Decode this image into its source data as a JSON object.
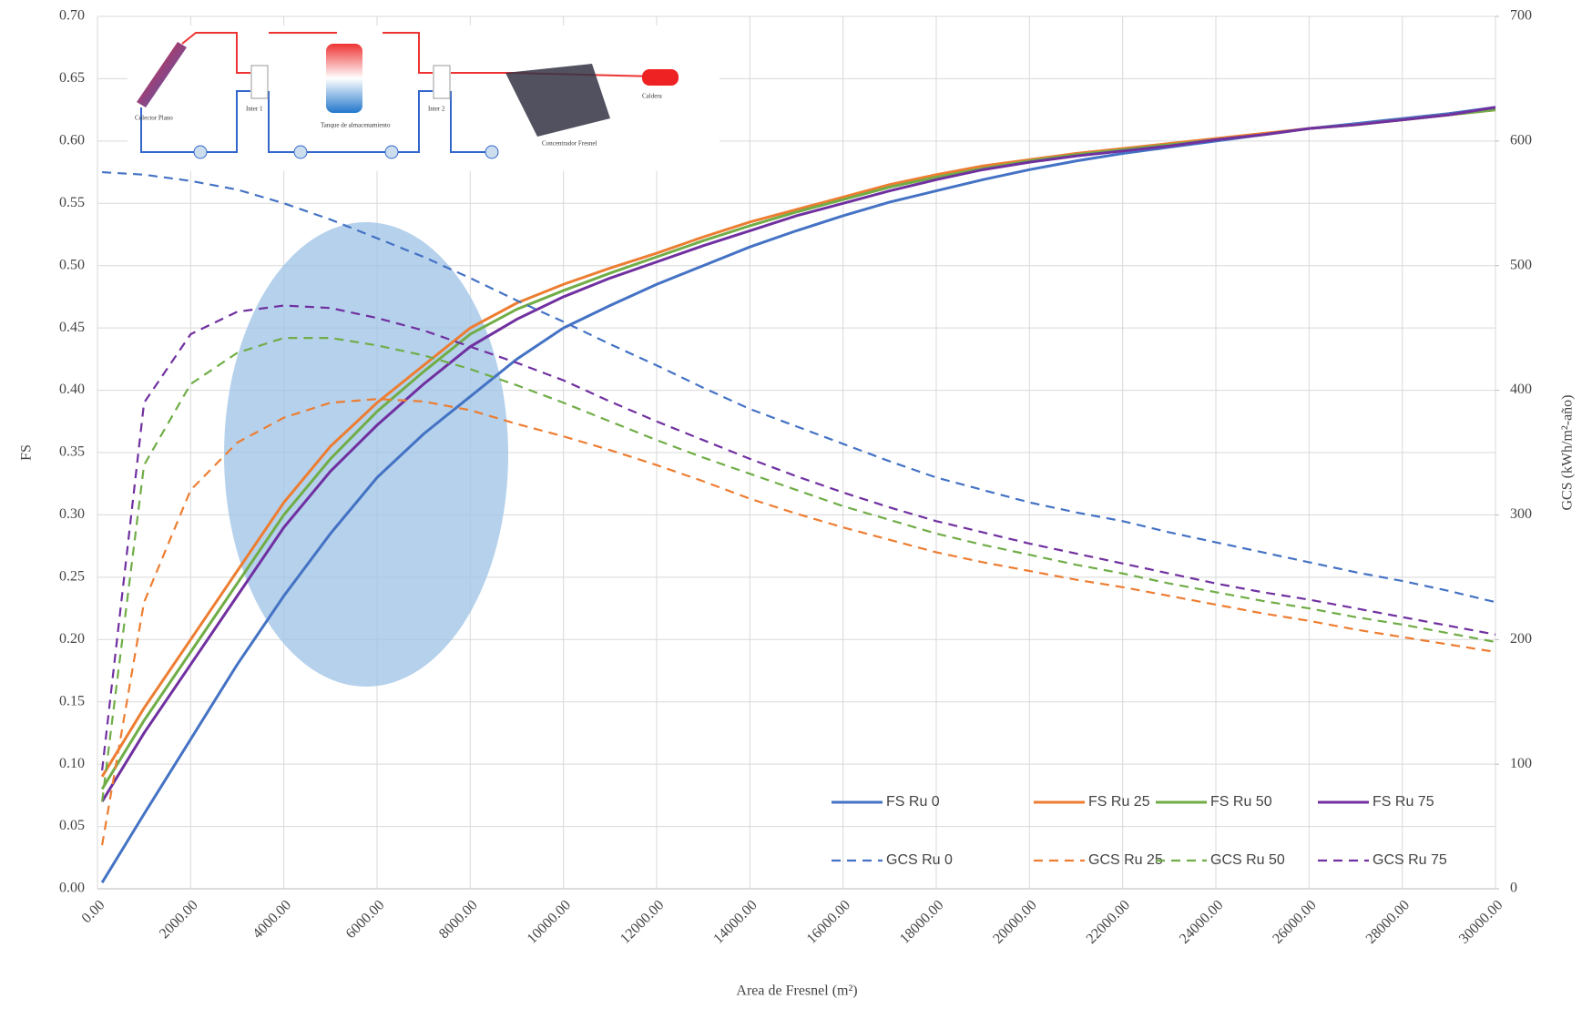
{
  "chart_data": {
    "type": "line",
    "x_label": "Area de Fresnel (m²)",
    "y_label": "FS",
    "y2_label": "GCS (kWh/m²-año)",
    "x": [
      100,
      1000,
      2000,
      3000,
      4000,
      5000,
      6000,
      7000,
      8000,
      9000,
      10000,
      11000,
      12000,
      13000,
      14000,
      15000,
      16000,
      17000,
      18000,
      19000,
      20000,
      21000,
      22000,
      23000,
      24000,
      25000,
      26000,
      27000,
      28000,
      29000,
      30000
    ],
    "series": [
      {
        "name": "FS Ru 0",
        "color": "#4472c4",
        "dashed": false,
        "values": [
          0.005,
          0.06,
          0.12,
          0.18,
          0.235,
          0.285,
          0.33,
          0.365,
          0.395,
          0.425,
          0.45,
          0.468,
          0.485,
          0.5,
          0.515,
          0.528,
          0.54,
          0.551,
          0.56,
          0.569,
          0.577,
          0.584,
          0.59,
          0.595,
          0.6,
          0.605,
          0.61,
          0.614,
          0.618,
          0.622,
          0.627
        ]
      },
      {
        "name": "FS Ru 25",
        "color": "#ed7d31",
        "dashed": false,
        "values": [
          0.09,
          0.145,
          0.2,
          0.255,
          0.31,
          0.355,
          0.39,
          0.42,
          0.45,
          0.47,
          0.485,
          0.498,
          0.51,
          0.523,
          0.535,
          0.545,
          0.555,
          0.565,
          0.573,
          0.58,
          0.585,
          0.59,
          0.594,
          0.598,
          0.602,
          0.606,
          0.61,
          0.613,
          0.617,
          0.621,
          0.625
        ]
      },
      {
        "name": "FS Ru 50",
        "color": "#70ad47",
        "dashed": false,
        "values": [
          0.08,
          0.135,
          0.19,
          0.245,
          0.3,
          0.345,
          0.383,
          0.415,
          0.445,
          0.465,
          0.48,
          0.494,
          0.507,
          0.52,
          0.532,
          0.543,
          0.553,
          0.563,
          0.571,
          0.578,
          0.584,
          0.589,
          0.593,
          0.597,
          0.601,
          0.605,
          0.61,
          0.613,
          0.617,
          0.621,
          0.625
        ]
      },
      {
        "name": "FS Ru 75",
        "color": "#7030a0",
        "dashed": false,
        "values": [
          0.07,
          0.125,
          0.18,
          0.235,
          0.29,
          0.335,
          0.372,
          0.405,
          0.435,
          0.457,
          0.475,
          0.49,
          0.503,
          0.516,
          0.528,
          0.54,
          0.55,
          0.56,
          0.569,
          0.577,
          0.583,
          0.588,
          0.592,
          0.596,
          0.601,
          0.605,
          0.61,
          0.613,
          0.617,
          0.621,
          0.627
        ]
      },
      {
        "name": "GCS Ru 0",
        "color": "#4472c4",
        "dashed": true,
        "axis": "y2",
        "values": [
          575,
          573,
          568,
          561,
          550,
          537,
          522,
          507,
          490,
          472,
          455,
          437,
          420,
          402,
          385,
          371,
          357,
          343,
          330,
          320,
          310,
          302,
          295,
          286,
          278,
          270,
          262,
          254,
          247,
          239,
          230
        ]
      },
      {
        "name": "GCS Ru 25",
        "color": "#ed7d31",
        "dashed": true,
        "axis": "y2",
        "values": [
          35,
          230,
          320,
          358,
          378,
          390,
          393,
          391,
          384,
          373,
          363,
          352,
          340,
          327,
          313,
          301,
          290,
          280,
          270,
          262,
          255,
          248,
          242,
          235,
          228,
          221,
          215,
          208,
          202,
          196,
          190
        ]
      },
      {
        "name": "GCS Ru 50",
        "color": "#70ad47",
        "dashed": true,
        "axis": "y2",
        "values": [
          70,
          340,
          405,
          430,
          442,
          442,
          436,
          428,
          417,
          404,
          390,
          375,
          360,
          346,
          333,
          320,
          307,
          296,
          285,
          276,
          268,
          260,
          253,
          245,
          238,
          231,
          225,
          218,
          212,
          205,
          198
        ]
      },
      {
        "name": "GCS Ru 75",
        "color": "#7030a0",
        "dashed": true,
        "axis": "y2",
        "values": [
          95,
          390,
          445,
          463,
          468,
          466,
          458,
          448,
          435,
          422,
          408,
          391,
          375,
          360,
          345,
          331,
          318,
          306,
          295,
          286,
          277,
          269,
          261,
          253,
          245,
          238,
          232,
          225,
          218,
          211,
          204
        ]
      }
    ],
    "xlim": [
      0,
      30000
    ],
    "xticks": [
      {
        "value": 0,
        "label": "0.00"
      },
      {
        "value": 2000,
        "label": "2000.00"
      },
      {
        "value": 4000,
        "label": "4000.00"
      },
      {
        "value": 6000,
        "label": "6000.00"
      },
      {
        "value": 8000,
        "label": "8000.00"
      },
      {
        "value": 10000,
        "label": "10000.00"
      },
      {
        "value": 12000,
        "label": "12000.00"
      },
      {
        "value": 14000,
        "label": "14000.00"
      },
      {
        "value": 16000,
        "label": "16000.00"
      },
      {
        "value": 18000,
        "label": "18000.00"
      },
      {
        "value": 20000,
        "label": "20000.00"
      },
      {
        "value": 22000,
        "label": "22000.00"
      },
      {
        "value": 24000,
        "label": "24000.00"
      },
      {
        "value": 26000,
        "label": "26000.00"
      },
      {
        "value": 28000,
        "label": "28000.00"
      },
      {
        "value": 30000,
        "label": "30000.00"
      }
    ],
    "ylim": [
      0,
      0.7
    ],
    "yticks": [
      {
        "value": 0,
        "label": "0.00"
      },
      0.05,
      {
        "value": 0.1,
        "label": "0.10"
      },
      0.15,
      {
        "value": 0.2,
        "label": "0.20"
      },
      0.25,
      {
        "value": 0.3,
        "label": "0.30"
      },
      0.35,
      {
        "value": 0.4,
        "label": "0.40"
      },
      0.45,
      {
        "value": 0.5,
        "label": "0.50"
      },
      0.55,
      {
        "value": 0.6,
        "label": "0.60"
      },
      0.65,
      {
        "value": 0.7,
        "label": "0.70"
      }
    ],
    "y2lim": [
      0,
      700
    ],
    "y2ticks": [
      0,
      100,
      200,
      300,
      400,
      500,
      600,
      700
    ],
    "grid": true
  },
  "diagram_labels": [
    "Colector Plano",
    "Inter 1",
    "Tanque de almacenamiento",
    "Inter 2",
    "Concentrador Fresnel",
    "Caldera"
  ]
}
